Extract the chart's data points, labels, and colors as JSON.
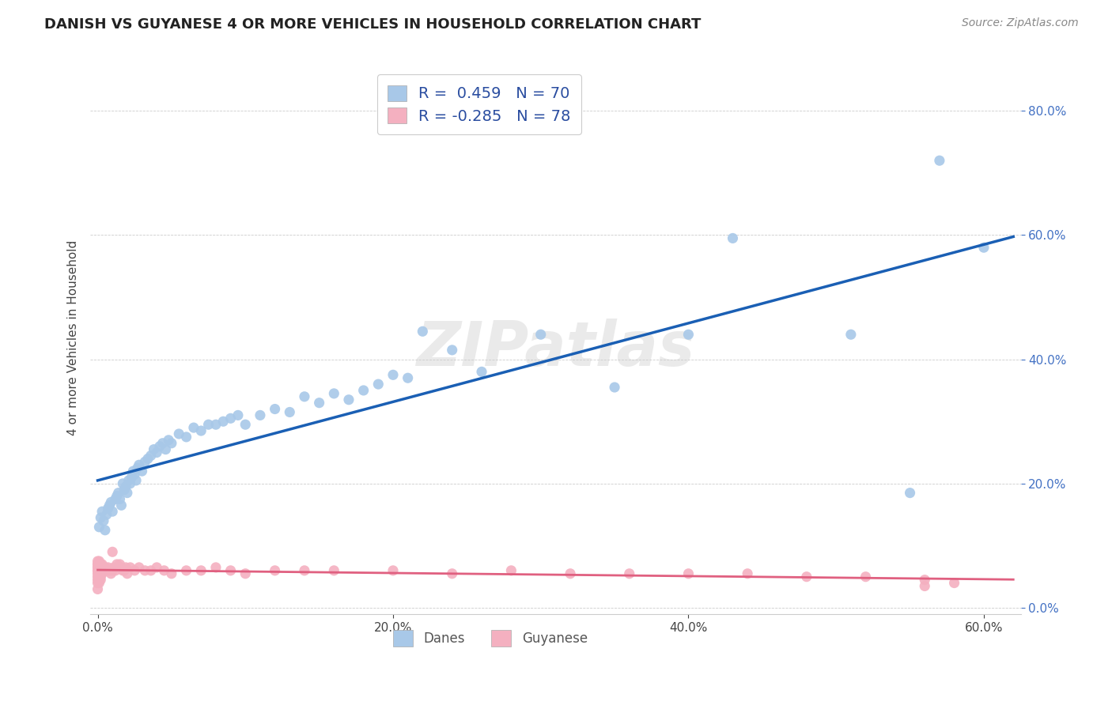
{
  "title": "DANISH VS GUYANESE 4 OR MORE VEHICLES IN HOUSEHOLD CORRELATION CHART",
  "source": "Source: ZipAtlas.com",
  "ylabel_label": "4 or more Vehicles in Household",
  "legend_r_entries": [
    {
      "label": "R =  0.459   N = 70",
      "color": "#b8d0ea"
    },
    {
      "label": "R = -0.285   N = 78",
      "color": "#f4b8c8"
    }
  ],
  "watermark": "ZIPatlas",
  "blue_line_color": "#1a5fb4",
  "pink_line_color": "#e06080",
  "danes_scatter_color": "#a8c8e8",
  "guyanese_scatter_color": "#f4b0c0",
  "xlim": [
    -0.005,
    0.625
  ],
  "ylim": [
    -0.01,
    0.88
  ],
  "xticks": [
    0.0,
    0.2,
    0.4,
    0.6
  ],
  "yticks": [
    0.0,
    0.2,
    0.4,
    0.6,
    0.8
  ],
  "danes_x": [
    0.001,
    0.002,
    0.003,
    0.004,
    0.005,
    0.006,
    0.007,
    0.008,
    0.009,
    0.01,
    0.012,
    0.013,
    0.014,
    0.015,
    0.016,
    0.017,
    0.018,
    0.019,
    0.02,
    0.021,
    0.022,
    0.023,
    0.024,
    0.025,
    0.026,
    0.027,
    0.028,
    0.03,
    0.032,
    0.034,
    0.036,
    0.038,
    0.04,
    0.042,
    0.044,
    0.046,
    0.048,
    0.05,
    0.055,
    0.06,
    0.065,
    0.07,
    0.075,
    0.08,
    0.085,
    0.09,
    0.095,
    0.1,
    0.11,
    0.12,
    0.13,
    0.14,
    0.15,
    0.16,
    0.17,
    0.18,
    0.19,
    0.2,
    0.21,
    0.22,
    0.24,
    0.26,
    0.3,
    0.35,
    0.4,
    0.43,
    0.51,
    0.55,
    0.57,
    0.6
  ],
  "danes_y": [
    0.13,
    0.145,
    0.155,
    0.14,
    0.125,
    0.15,
    0.16,
    0.165,
    0.17,
    0.155,
    0.175,
    0.18,
    0.185,
    0.175,
    0.165,
    0.2,
    0.19,
    0.195,
    0.185,
    0.205,
    0.2,
    0.21,
    0.22,
    0.215,
    0.205,
    0.225,
    0.23,
    0.22,
    0.235,
    0.24,
    0.245,
    0.255,
    0.25,
    0.26,
    0.265,
    0.255,
    0.27,
    0.265,
    0.28,
    0.275,
    0.29,
    0.285,
    0.295,
    0.295,
    0.3,
    0.305,
    0.31,
    0.295,
    0.31,
    0.32,
    0.315,
    0.34,
    0.33,
    0.345,
    0.335,
    0.35,
    0.36,
    0.375,
    0.37,
    0.445,
    0.415,
    0.38,
    0.44,
    0.355,
    0.44,
    0.595,
    0.44,
    0.185,
    0.72,
    0.58
  ],
  "guyanese_x": [
    0.0,
    0.0,
    0.0,
    0.0,
    0.0,
    0.0,
    0.0,
    0.0,
    0.0,
    0.0,
    0.0,
    0.0,
    0.001,
    0.001,
    0.001,
    0.001,
    0.001,
    0.001,
    0.001,
    0.001,
    0.002,
    0.002,
    0.002,
    0.002,
    0.002,
    0.002,
    0.003,
    0.003,
    0.003,
    0.003,
    0.004,
    0.004,
    0.005,
    0.005,
    0.006,
    0.007,
    0.008,
    0.009,
    0.01,
    0.011,
    0.012,
    0.013,
    0.014,
    0.015,
    0.016,
    0.017,
    0.018,
    0.019,
    0.02,
    0.022,
    0.025,
    0.028,
    0.032,
    0.036,
    0.04,
    0.045,
    0.05,
    0.06,
    0.07,
    0.08,
    0.09,
    0.1,
    0.12,
    0.14,
    0.16,
    0.2,
    0.24,
    0.28,
    0.32,
    0.36,
    0.4,
    0.44,
    0.48,
    0.52,
    0.56,
    0.58,
    0.56,
    0.01
  ],
  "guyanese_y": [
    0.03,
    0.04,
    0.045,
    0.05,
    0.055,
    0.06,
    0.06,
    0.065,
    0.065,
    0.07,
    0.07,
    0.075,
    0.04,
    0.045,
    0.05,
    0.055,
    0.06,
    0.065,
    0.07,
    0.075,
    0.045,
    0.05,
    0.055,
    0.06,
    0.065,
    0.07,
    0.055,
    0.06,
    0.065,
    0.07,
    0.06,
    0.065,
    0.06,
    0.065,
    0.06,
    0.065,
    0.06,
    0.055,
    0.06,
    0.065,
    0.06,
    0.07,
    0.065,
    0.07,
    0.065,
    0.06,
    0.06,
    0.065,
    0.055,
    0.065,
    0.06,
    0.065,
    0.06,
    0.06,
    0.065,
    0.06,
    0.055,
    0.06,
    0.06,
    0.065,
    0.06,
    0.055,
    0.06,
    0.06,
    0.06,
    0.06,
    0.055,
    0.06,
    0.055,
    0.055,
    0.055,
    0.055,
    0.05,
    0.05,
    0.045,
    0.04,
    0.035,
    0.09
  ]
}
